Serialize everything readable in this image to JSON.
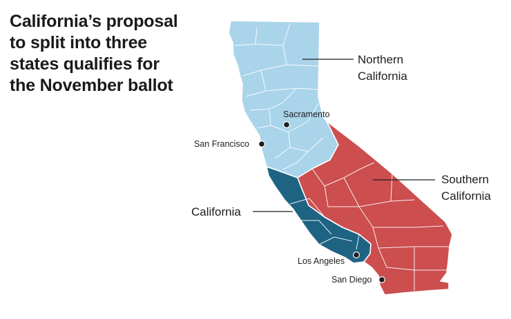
{
  "headline": {
    "lines": [
      "California’s proposal",
      "to split into three",
      "states qualifies for",
      "the November ballot"
    ]
  },
  "regions": {
    "northern": {
      "line1": "Northern",
      "line2": "California",
      "color": "#a9d4ea"
    },
    "southern": {
      "line1": "Southern",
      "line2": "California",
      "color": "#cc4e4f"
    },
    "california": {
      "label": "California",
      "color": "#1f6383"
    }
  },
  "cities": {
    "sacramento": "Sacramento",
    "san_francisco": "San Francisco",
    "los_angeles": "Los Angeles",
    "san_diego": "San Diego"
  }
}
